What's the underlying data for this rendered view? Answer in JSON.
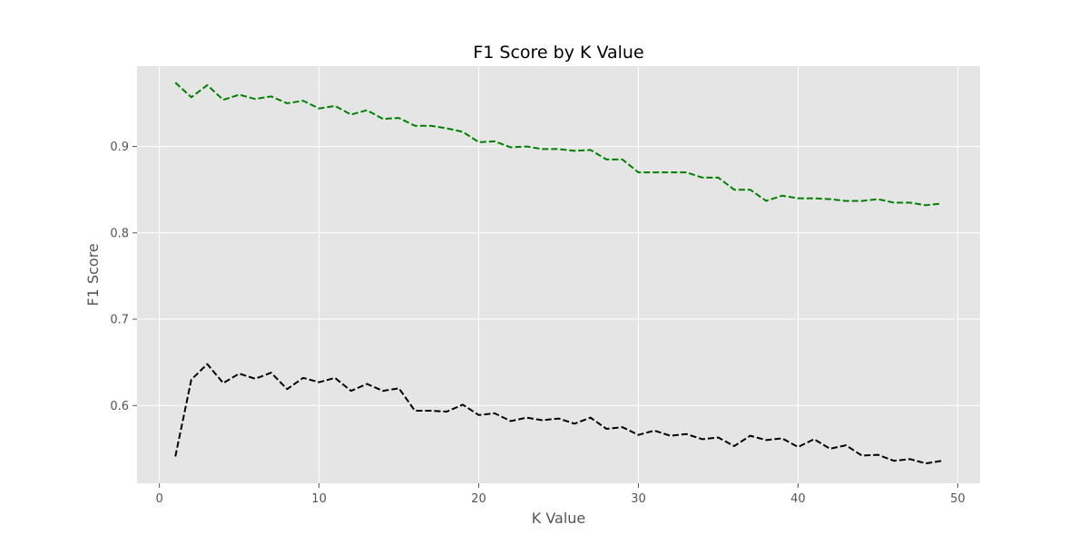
{
  "chart_data": {
    "type": "line",
    "title": "F1 Score by K Value",
    "xlabel": "K Value",
    "ylabel": "F1 Score",
    "xlim": [
      -1.4,
      51.4
    ],
    "ylim": [
      0.51,
      0.993
    ],
    "xticks": [
      0,
      10,
      20,
      30,
      40,
      50
    ],
    "yticks": [
      0.6,
      0.7,
      0.8,
      0.9
    ],
    "grid": true,
    "x": [
      1,
      2,
      3,
      4,
      5,
      6,
      7,
      8,
      9,
      10,
      11,
      12,
      13,
      14,
      15,
      16,
      17,
      18,
      19,
      20,
      21,
      22,
      23,
      24,
      25,
      26,
      27,
      28,
      29,
      30,
      31,
      32,
      33,
      34,
      35,
      36,
      37,
      38,
      39,
      40,
      41,
      42,
      43,
      44,
      45,
      46,
      47,
      48,
      49
    ],
    "series": [
      {
        "color": "#008000",
        "linestyle": "dashed",
        "values": [
          0.974,
          0.957,
          0.971,
          0.954,
          0.96,
          0.955,
          0.958,
          0.95,
          0.953,
          0.944,
          0.947,
          0.937,
          0.942,
          0.932,
          0.933,
          0.924,
          0.924,
          0.921,
          0.917,
          0.905,
          0.906,
          0.899,
          0.9,
          0.897,
          0.897,
          0.895,
          0.896,
          0.885,
          0.885,
          0.87,
          0.87,
          0.87,
          0.87,
          0.864,
          0.864,
          0.85,
          0.85,
          0.837,
          0.843,
          0.84,
          0.84,
          0.839,
          0.837,
          0.837,
          0.839,
          0.835,
          0.835,
          0.832,
          0.834
        ]
      },
      {
        "color": "#000000",
        "linestyle": "dashed",
        "values": [
          0.541,
          0.63,
          0.648,
          0.626,
          0.637,
          0.631,
          0.638,
          0.619,
          0.632,
          0.627,
          0.632,
          0.617,
          0.625,
          0.617,
          0.62,
          0.594,
          0.594,
          0.593,
          0.601,
          0.589,
          0.591,
          0.582,
          0.586,
          0.583,
          0.585,
          0.579,
          0.586,
          0.573,
          0.575,
          0.566,
          0.571,
          0.565,
          0.567,
          0.561,
          0.563,
          0.553,
          0.565,
          0.56,
          0.562,
          0.552,
          0.561,
          0.55,
          0.554,
          0.542,
          0.543,
          0.536,
          0.538,
          0.533,
          0.536
        ]
      }
    ]
  }
}
